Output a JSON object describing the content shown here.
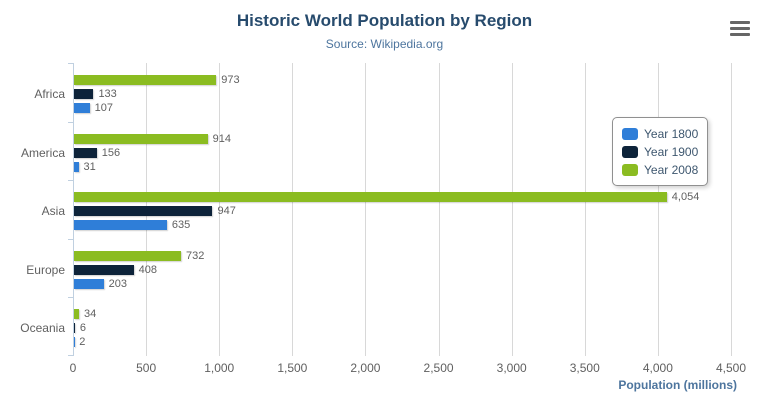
{
  "chart_data": {
    "type": "bar",
    "orientation": "horizontal",
    "title": "Historic World Population by Region",
    "subtitle": "Source: Wikipedia.org",
    "xlabel": "Population (millions)",
    "categories": [
      "Africa",
      "America",
      "Asia",
      "Europe",
      "Oceania"
    ],
    "series": [
      {
        "name": "Year 1800",
        "color": "#2f7ed8",
        "values": [
          107,
          31,
          635,
          203,
          2
        ]
      },
      {
        "name": "Year 1900",
        "color": "#0d233a",
        "values": [
          133,
          156,
          947,
          408,
          6
        ]
      },
      {
        "name": "Year 2008",
        "color": "#8bbc21",
        "values": [
          973,
          914,
          4054,
          732,
          34
        ]
      }
    ],
    "series_render_order_top_to_bottom": [
      "Year 2008",
      "Year 1900",
      "Year 1800"
    ],
    "axis_range": [
      0,
      4500
    ],
    "tick_interval": 500,
    "tick_labels": [
      "0",
      "500",
      "1,000",
      "1,500",
      "2,000",
      "2,500",
      "3,000",
      "3,500",
      "4,000",
      "4,500"
    ],
    "grid": true,
    "legend_position": "right"
  },
  "controls": {
    "context_menu_icon": "hamburger-icon"
  },
  "colors": {
    "title": "#274b6d",
    "subtitle": "#4d759e",
    "axis_title": "#4d759e",
    "label_text": "#606060",
    "legend_text": "#3e576f",
    "gridline": "#d8d8d8",
    "axis_line": "#c0d0e0",
    "menu_icon": "#666666"
  }
}
